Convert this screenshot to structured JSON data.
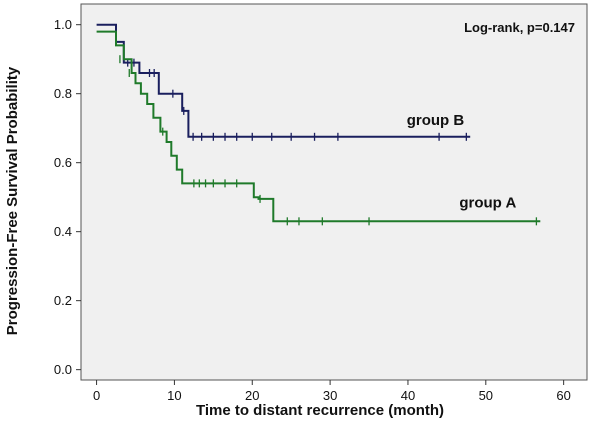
{
  "chart_data": {
    "type": "line",
    "title": "",
    "xlabel": "Time to distant recurrence (month)",
    "ylabel": "Progression-Free Survival Probability",
    "xlim": [
      -2,
      63
    ],
    "ylim": [
      -0.03,
      1.06
    ],
    "xticks": [
      0,
      10,
      20,
      30,
      40,
      50,
      60
    ],
    "yticks": [
      0.0,
      0.2,
      0.4,
      0.6,
      0.8,
      1.0
    ],
    "xtick_labels": [
      "0",
      "10",
      "20",
      "30",
      "40",
      "50",
      "60"
    ],
    "ytick_labels": [
      "0.0",
      "0.2",
      "0.4",
      "0.6",
      "0.8",
      "1.0"
    ],
    "grid": false,
    "background_color": "#f0f0f0",
    "annotation": "Log-rank, p=0.147",
    "series": [
      {
        "name": "group B",
        "color": "#1a1f5e",
        "step_x": [
          0,
          2,
          2.5,
          3.5,
          5.5,
          8,
          11,
          11.8,
          48
        ],
        "step_y": [
          1.0,
          1.0,
          0.95,
          0.89,
          0.86,
          0.8,
          0.75,
          0.675,
          0.675
        ],
        "censor_x": [
          4,
          4.8,
          6.8,
          7.4,
          9.8,
          11.2,
          12.4,
          13.5,
          15,
          16.5,
          18,
          20,
          22.5,
          25,
          28,
          31,
          44,
          47.5
        ],
        "censor_y": [
          0.89,
          0.89,
          0.86,
          0.86,
          0.8,
          0.75,
          0.675,
          0.675,
          0.675,
          0.675,
          0.675,
          0.675,
          0.675,
          0.675,
          0.675,
          0.675,
          0.675,
          0.675
        ]
      },
      {
        "name": "group A",
        "color": "#1f7a2a",
        "step_x": [
          0,
          1.5,
          2.5,
          3.5,
          4.5,
          5,
          5.7,
          6.5,
          7.3,
          8.2,
          9,
          9.6,
          10.3,
          11,
          20.2,
          20.8,
          22.7,
          57
        ],
        "step_y": [
          0.98,
          0.98,
          0.94,
          0.9,
          0.86,
          0.83,
          0.8,
          0.77,
          0.73,
          0.69,
          0.66,
          0.62,
          0.58,
          0.54,
          0.5,
          0.495,
          0.43,
          0.43
        ],
        "censor_x": [
          3,
          4.2,
          8.5,
          12.5,
          13.2,
          14,
          15,
          16.5,
          18,
          21,
          24.5,
          26,
          29,
          35,
          56.5
        ],
        "censor_y": [
          0.9,
          0.86,
          0.69,
          0.54,
          0.54,
          0.54,
          0.54,
          0.54,
          0.54,
          0.495,
          0.43,
          0.43,
          0.43,
          0.43,
          0.43
        ]
      }
    ]
  }
}
